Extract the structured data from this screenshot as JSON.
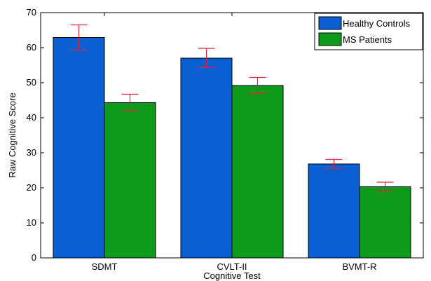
{
  "chart_data": {
    "type": "bar",
    "title": "",
    "xlabel": "Cognitive Test",
    "ylabel": "Raw Cognitive Score",
    "categories": [
      "SDMT",
      "CVLT-II",
      "BVMT-R"
    ],
    "ylim": [
      0,
      70
    ],
    "yticks": [
      0,
      10,
      20,
      30,
      40,
      50,
      60,
      70
    ],
    "series": [
      {
        "name": "Healthy Controls",
        "values": [
          62.9,
          57.0,
          26.8
        ],
        "error_low": [
          59.3,
          54.3,
          25.6
        ],
        "error_high": [
          66.5,
          59.8,
          28.1
        ],
        "color": "#0a5fd2"
      },
      {
        "name": "MS Patients",
        "values": [
          44.3,
          49.2,
          20.3
        ],
        "error_low": [
          42.0,
          46.9,
          18.9
        ],
        "error_high": [
          46.7,
          51.5,
          21.6
        ],
        "color": "#0e9b1c"
      }
    ],
    "error_bar_color": "#e2233a",
    "legend_position": "top-right",
    "grid": false
  }
}
